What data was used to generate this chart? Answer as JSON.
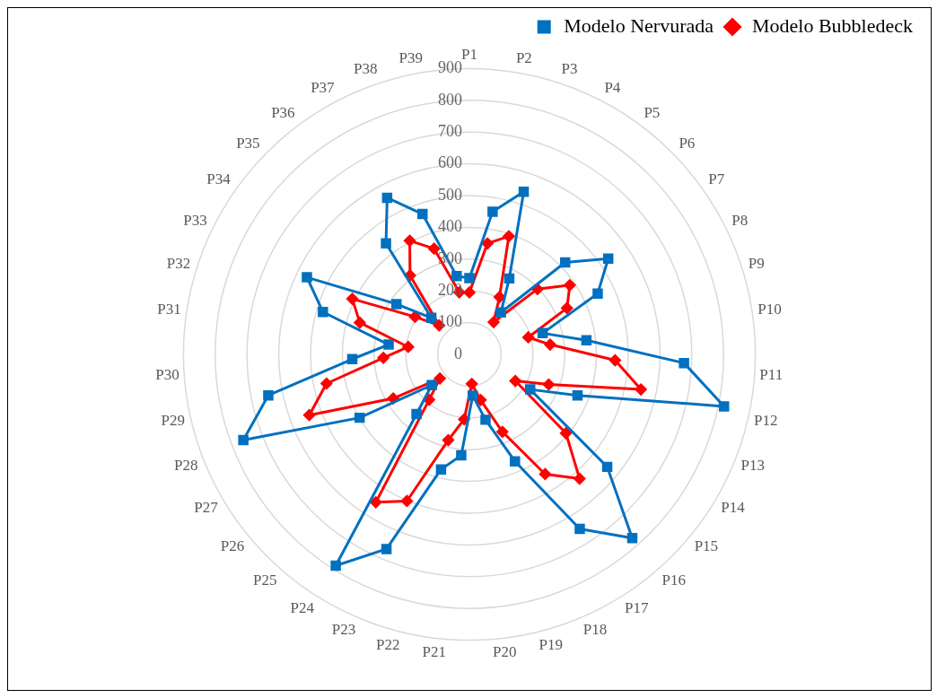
{
  "chart_data": {
    "type": "radar",
    "categories": [
      "P1",
      "P2",
      "P3",
      "P4",
      "P5",
      "P6",
      "P7",
      "P8",
      "P9",
      "P10",
      "P11",
      "P12",
      "P13",
      "P14",
      "P15",
      "P16",
      "P17",
      "P18",
      "P19",
      "P20",
      "P21",
      "P22",
      "P23",
      "P24",
      "P25",
      "P26",
      "P27",
      "P28",
      "P29",
      "P30",
      "P31",
      "P32",
      "P33",
      "P34",
      "P35",
      "P36",
      "P37",
      "P38",
      "P39"
    ],
    "series": [
      {
        "name": "Modelo Nervurada",
        "color": "#0070c0",
        "marker": "square",
        "values": [
          240,
          455,
          540,
          270,
          165,
          418,
          531,
          447,
          240,
          371,
          676,
          818,
          364,
          221,
          560,
          773,
          650,
          366,
          212,
          130,
          319,
          373,
          666,
          787,
          251,
          153,
          399,
          761,
          646,
          369,
          256,
          480,
          566,
          279,
          166,
          437,
          557,
          466,
          250
        ]
      },
      {
        "name": "Modelo Bubbledeck",
        "color": "#ff0000",
        "marker": "diamond",
        "values": [
          195,
          354,
          392,
          204,
          127,
          297,
          384,
          340,
          193,
          256,
          459,
          551,
          267,
          167,
          392,
          523,
          446,
          265,
          148,
          93,
          205,
          278,
          502,
          551,
          191,
          120,
          277,
          539,
          459,
          271,
          194,
          359,
          408,
          208,
          132,
          311,
          404,
          351,
          198
        ]
      }
    ],
    "ylim": [
      0,
      900
    ],
    "yticks": [
      0,
      100,
      200,
      300,
      400,
      500,
      600,
      700,
      800,
      900
    ],
    "grid": true,
    "legend": "top right"
  }
}
